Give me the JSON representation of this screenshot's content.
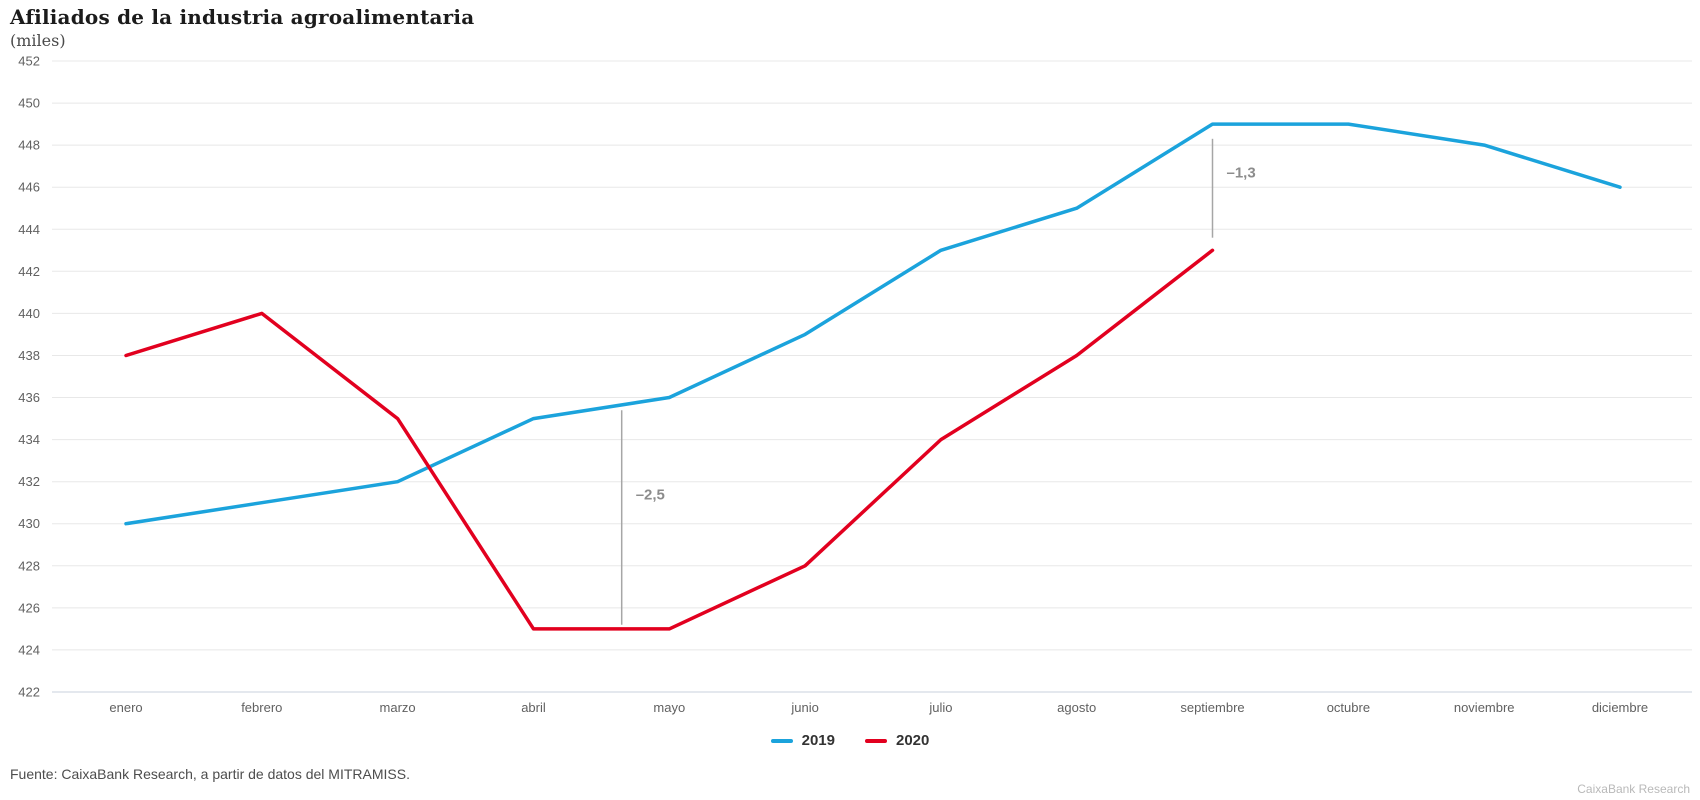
{
  "chart_data": {
    "type": "line",
    "title": "Afiliados de la industria agroalimentaria",
    "subtitle": "(miles)",
    "categories": [
      "enero",
      "febrero",
      "marzo",
      "abril",
      "mayo",
      "junio",
      "julio",
      "agosto",
      "septiembre",
      "octubre",
      "noviembre",
      "diciembre"
    ],
    "series": [
      {
        "name": "2019",
        "color": "#1ba3dc",
        "values": [
          430,
          431,
          432,
          435,
          436,
          439,
          443,
          445,
          449,
          449,
          448,
          446
        ]
      },
      {
        "name": "2020",
        "color": "#e2001f",
        "values": [
          438,
          440,
          435,
          425,
          425,
          428,
          434,
          438,
          443,
          null,
          null,
          null
        ]
      }
    ],
    "ylim": [
      422,
      452
    ],
    "ytick_step": 2,
    "grid": true,
    "legend_position": "bottom-center",
    "annotations": [
      {
        "label": "–2,5",
        "x_index": 3.65,
        "y_from": 435.4,
        "y_to": 425.2,
        "label_y": 431.4
      },
      {
        "label": "–1,3",
        "x_index": 8,
        "y_from": 448.3,
        "y_to": 443.6,
        "label_y": 446.7
      }
    ]
  },
  "footer": {
    "source": "Fuente: CaixaBank Research, a partir de datos del MITRAMISS.",
    "watermark": "CaixaBank Research"
  },
  "colors": {
    "gridline": "#e8e8e8",
    "axis_line": "#c8d0de",
    "tick_label": "#616161",
    "annotation_line": "#a6a6a6",
    "annotation_label": "#8c8c8c"
  }
}
